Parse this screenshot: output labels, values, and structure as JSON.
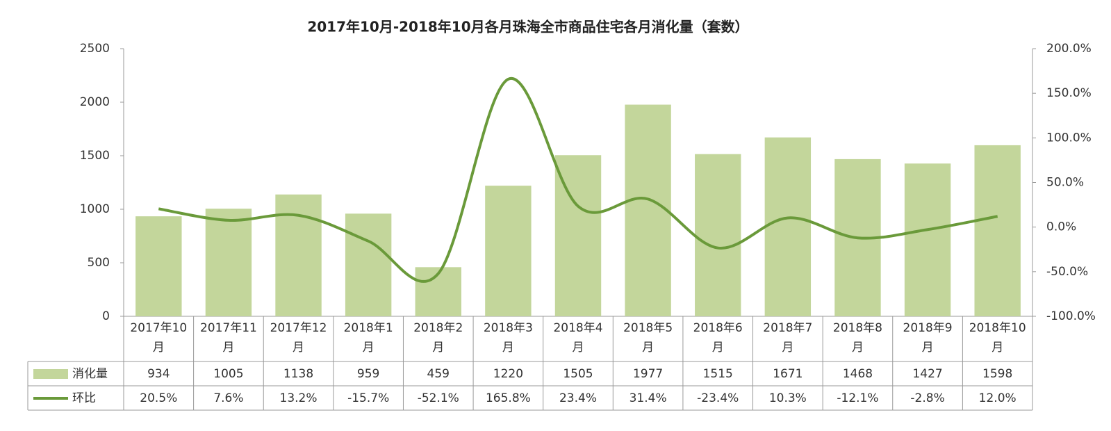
{
  "chart_data": {
    "type": "bar",
    "title": "2017年10月-2018年10月各月珠海全市商品住宅各月消化量（套数）",
    "categories": [
      "2017年10月",
      "2017年11月",
      "2017年12月",
      "2018年1月",
      "2018年2月",
      "2018年3月",
      "2018年4月",
      "2018年5月",
      "2018年6月",
      "2018年7月",
      "2018年8月",
      "2018年9月",
      "2018年10月"
    ],
    "series": [
      {
        "name": "消化量",
        "type": "bar",
        "color": "#c3d69b",
        "values": [
          934,
          1005,
          1138,
          959,
          459,
          1220,
          1505,
          1977,
          1515,
          1671,
          1468,
          1427,
          1598
        ]
      },
      {
        "name": "环比",
        "type": "line",
        "axis": "y2",
        "color": "#6a9a3a",
        "values": [
          20.5,
          7.6,
          13.2,
          -15.7,
          -52.1,
          165.8,
          23.4,
          31.4,
          -23.4,
          10.3,
          -12.1,
          -2.8,
          12.0
        ],
        "value_labels": [
          "20.5%",
          "7.6%",
          "13.2%",
          "-15.7%",
          "-52.1%",
          "165.8%",
          "23.4%",
          "31.4%",
          "-23.4%",
          "10.3%",
          "-12.1%",
          "-2.8%",
          "12.0%"
        ]
      }
    ],
    "ylim": [
      0,
      2500
    ],
    "yticks": [
      0,
      500,
      1000,
      1500,
      2000,
      2500
    ],
    "y2lim": [
      -100,
      200
    ],
    "y2ticks": [
      {
        "value": -100,
        "label": "-100.0%"
      },
      {
        "value": -50,
        "label": "-50.0%"
      },
      {
        "value": 0,
        "label": "0.0%"
      },
      {
        "value": 50,
        "label": "50.0%"
      },
      {
        "value": 100,
        "label": "100.0%"
      },
      {
        "value": 150,
        "label": "150.0%"
      },
      {
        "value": 200,
        "label": "200.0%"
      }
    ]
  }
}
